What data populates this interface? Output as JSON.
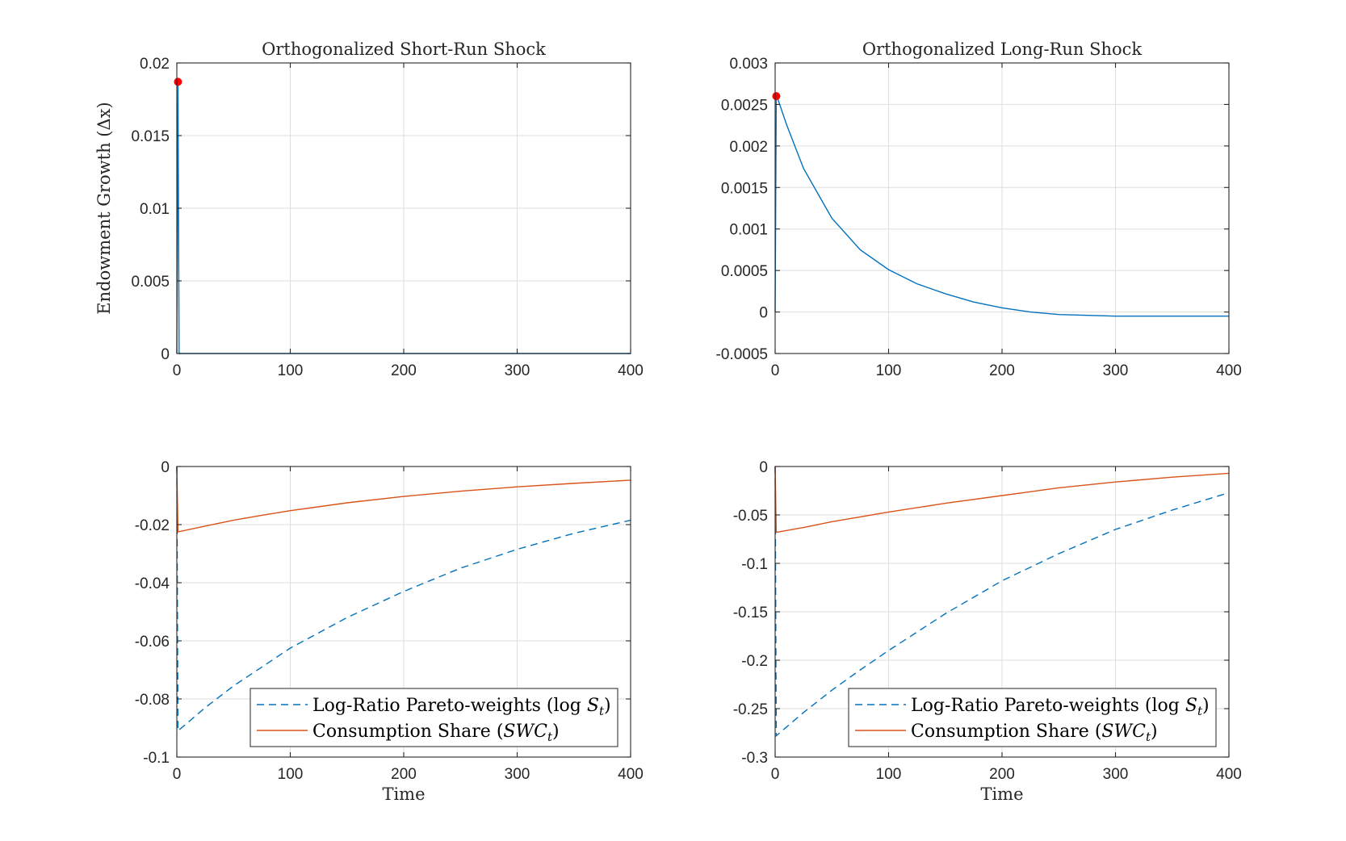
{
  "chart_data": [
    {
      "type": "line",
      "title": "Orthogonalized Short-Run Shock",
      "xlabel": "",
      "ylabel": "Endowment Growth (Δx)",
      "xlim": [
        0,
        400
      ],
      "ylim": [
        0,
        0.02
      ],
      "xticks": [
        0,
        100,
        200,
        300,
        400
      ],
      "xtick_labels": [
        "0",
        "100",
        "200",
        "300",
        "400"
      ],
      "yticks": [
        0,
        0.005,
        0.01,
        0.015,
        0.02
      ],
      "ytick_labels": [
        "0",
        "0.005",
        "0.01",
        "0.015",
        "0.02"
      ],
      "grid": true,
      "series": [
        {
          "color": "#0072bd",
          "style": "solid",
          "x": [
            0,
            1,
            2,
            400
          ],
          "y": [
            0,
            0.0187,
            0,
            0
          ]
        }
      ],
      "markers": [
        {
          "x": 1,
          "y": 0.0187,
          "color": "#ff0000"
        }
      ]
    },
    {
      "type": "line",
      "title": "Orthogonalized Long-Run Shock",
      "xlabel": "",
      "ylabel": "",
      "xlim": [
        0,
        400
      ],
      "ylim": [
        -0.0005,
        0.003
      ],
      "xticks": [
        0,
        100,
        200,
        300,
        400
      ],
      "xtick_labels": [
        "0",
        "100",
        "200",
        "300",
        "400"
      ],
      "yticks": [
        -0.0005,
        0,
        0.0005,
        0.001,
        0.0015,
        0.002,
        0.0025,
        0.003
      ],
      "ytick_labels": [
        "-0.0005",
        "0",
        "0.0005",
        "0.001",
        "0.0015",
        "0.002",
        "0.0025",
        "0.003"
      ],
      "grid": true,
      "series": [
        {
          "color": "#0072bd",
          "style": "solid",
          "x": [
            0,
            1,
            2,
            10,
            25,
            50,
            75,
            100,
            125,
            150,
            175,
            200,
            225,
            250,
            275,
            300,
            325,
            350,
            375,
            400
          ],
          "y": [
            0,
            0.0026,
            0.00258,
            0.00226,
            0.00173,
            0.00113,
            0.00075,
            0.00051,
            0.00034,
            0.00022,
            0.00012,
            5e-05,
            0.0,
            -3e-05,
            -4e-05,
            -5e-05,
            -5e-05,
            -5e-05,
            -5e-05,
            -5e-05
          ]
        }
      ],
      "markers": [
        {
          "x": 1,
          "y": 0.0026,
          "color": "#ff0000"
        }
      ]
    },
    {
      "type": "line",
      "title": "",
      "xlabel": "Time",
      "ylabel": "",
      "xlim": [
        0,
        400
      ],
      "ylim": [
        -0.1,
        0
      ],
      "xticks": [
        0,
        100,
        200,
        300,
        400
      ],
      "xtick_labels": [
        "0",
        "100",
        "200",
        "300",
        "400"
      ],
      "yticks": [
        -0.1,
        -0.08,
        -0.06,
        -0.04,
        -0.02,
        0
      ],
      "ytick_labels": [
        "-0.1",
        "-0.08",
        "-0.06",
        "-0.04",
        "-0.02",
        "0"
      ],
      "grid": true,
      "legend": "bottom-right",
      "series": [
        {
          "name": "Log-Ratio Pareto-weights (log S_t)",
          "color": "#0072bd",
          "style": "dashed",
          "x": [
            0,
            1,
            25,
            50,
            75,
            100,
            150,
            200,
            250,
            300,
            350,
            400
          ],
          "y": [
            0,
            -0.091,
            -0.083,
            -0.0755,
            -0.069,
            -0.0625,
            -0.052,
            -0.043,
            -0.035,
            -0.0285,
            -0.023,
            -0.0185
          ]
        },
        {
          "name": "Consumption Share (SWC_t)",
          "color": "#d95319",
          "style": "solid",
          "x": [
            0,
            1,
            25,
            50,
            75,
            100,
            150,
            200,
            250,
            300,
            350,
            400
          ],
          "y": [
            0,
            -0.0225,
            -0.0205,
            -0.0185,
            -0.0168,
            -0.0152,
            -0.0125,
            -0.0103,
            -0.0085,
            -0.007,
            -0.0058,
            -0.0047
          ]
        }
      ]
    },
    {
      "type": "line",
      "title": "",
      "xlabel": "Time",
      "ylabel": "",
      "xlim": [
        0,
        400
      ],
      "ylim": [
        -0.3,
        0
      ],
      "xticks": [
        0,
        100,
        200,
        300,
        400
      ],
      "xtick_labels": [
        "0",
        "100",
        "200",
        "300",
        "400"
      ],
      "yticks": [
        -0.3,
        -0.25,
        -0.2,
        -0.15,
        -0.1,
        -0.05,
        0
      ],
      "ytick_labels": [
        "-0.3",
        "-0.25",
        "-0.2",
        "-0.15",
        "-0.1",
        "-0.05",
        "0"
      ],
      "grid": true,
      "legend": "bottom-right",
      "series": [
        {
          "name": "Log-Ratio Pareto-weights (log S_t)",
          "color": "#0072bd",
          "style": "dashed",
          "x": [
            0,
            1,
            25,
            50,
            75,
            100,
            150,
            200,
            250,
            300,
            350,
            400
          ],
          "y": [
            0,
            -0.278,
            -0.254,
            -0.231,
            -0.21,
            -0.19,
            -0.152,
            -0.118,
            -0.09,
            -0.065,
            -0.045,
            -0.027
          ]
        },
        {
          "name": "Consumption Share (SWC_t)",
          "color": "#d95319",
          "style": "solid",
          "x": [
            0,
            1,
            25,
            50,
            75,
            100,
            150,
            200,
            250,
            300,
            350,
            400
          ],
          "y": [
            0,
            -0.068,
            -0.063,
            -0.057,
            -0.052,
            -0.047,
            -0.038,
            -0.03,
            -0.022,
            -0.016,
            -0.011,
            -0.007
          ]
        }
      ]
    }
  ]
}
